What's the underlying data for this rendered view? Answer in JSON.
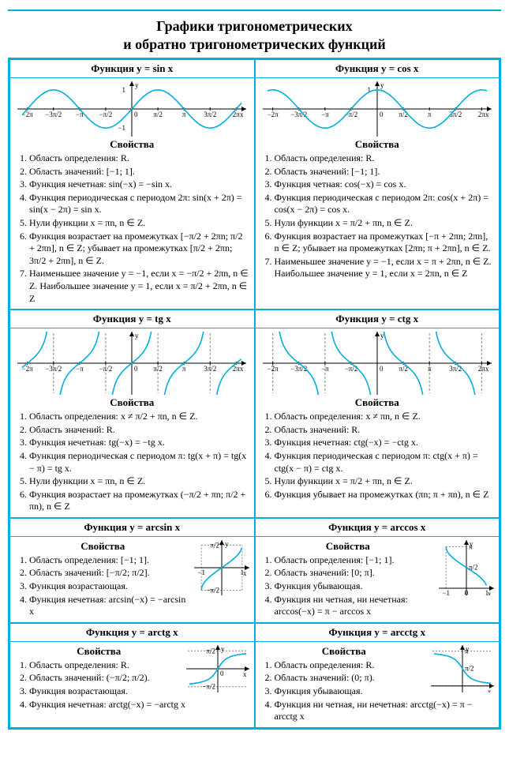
{
  "title1": "Графики тригонометрических",
  "title2": "и обратно тригонометрических функций",
  "colors": {
    "accent": "#00aee0",
    "curve": "#00aee0",
    "axis": "#000",
    "dash": "#888"
  },
  "sin": {
    "head": "Функция y = sin x",
    "sub": "Свойства",
    "graph": {
      "type": "sin",
      "xlim": [
        -6.6,
        6.6
      ],
      "ylim": [
        -1.2,
        1.2
      ],
      "xticks": [
        "−2π",
        "−3π/2",
        "−π",
        "−π/2",
        "0",
        "π/2",
        "π",
        "3π/2",
        "2π"
      ],
      "xtick_pos": [
        -6.283,
        -4.712,
        -3.1416,
        -1.5708,
        0,
        1.5708,
        3.1416,
        4.712,
        6.283
      ],
      "amp": 1,
      "period": 6.2832
    },
    "props": [
      "Область определения: R.",
      "Область значений: [−1; 1].",
      "Функция нечетная: sin(−x) = −sin x.",
      "Функция периодическая с периодом 2π: sin(x + 2π) = sin(x − 2π) = sin x.",
      "Нули функции x = πn,  n ∈ Z.",
      "Функция возрастает на промежутках [−π/2 + 2πn; π/2 + 2πn],  n ∈ Z; убывает на промежутках [π/2 + 2πn; 3π/2 + 2πn],  n ∈ Z.",
      "Наименьшее значение y = −1, если x = −π/2 + 2πn,  n ∈ Z. Наибольшее значение y = 1, если x = π/2 + 2πn,  n ∈ Z"
    ]
  },
  "cos": {
    "head": "Функция y = cos x",
    "sub": "Свойства",
    "graph": {
      "type": "cos",
      "xlim": [
        -6.6,
        6.6
      ],
      "ylim": [
        -1.2,
        1.2
      ],
      "xtick_pos": [
        -6.283,
        -4.712,
        -3.1416,
        -1.5708,
        0,
        1.5708,
        3.1416,
        4.712,
        6.283
      ],
      "xticks": [
        "−2π",
        "−3π/2",
        "−π",
        "−π/2",
        "0",
        "π/2",
        "π",
        "3π/2",
        "2π"
      ],
      "amp": 1,
      "period": 6.2832
    },
    "props": [
      "Область определения: R.",
      "Область значений: [−1; 1].",
      "Функция четная: cos(−x) = cos x.",
      "Функция периодическая с периодом 2π: cos(x + 2π) = cos(x − 2π) = cos x.",
      "Нули функции  x = π/2 + πn,  n ∈ Z.",
      "Функция возрастает на промежутках [−π + 2πn; 2πn],  n ∈ Z; убывает на промежутках [2πn; π + 2πn],  n ∈ Z.",
      "Наименьшее значение y = −1, если x = π + 2πn,  n ∈ Z. Наибольшее значение y = 1, если x = 2πn,  n ∈ Z"
    ]
  },
  "tan": {
    "head": "Функция y = tg x",
    "sub": "Свойства",
    "graph": {
      "type": "tan",
      "xlim": [
        -6.6,
        6.6
      ],
      "ylim": [
        -2,
        2
      ],
      "asymptotes": [
        -4.712,
        -1.5708,
        1.5708,
        4.712
      ],
      "xtick_pos": [
        -6.283,
        -4.712,
        -3.1416,
        -1.5708,
        0,
        1.5708,
        3.1416,
        4.712,
        6.283
      ],
      "xticks": [
        "−2π",
        "−3π/2",
        "−π",
        "−π/2",
        "0",
        "π/2",
        "π",
        "3π/2",
        "2π"
      ]
    },
    "props": [
      "Область определения:  x ≠ π/2 + πn,  n ∈ Z.",
      "Область значений: R.",
      "Функция нечетная: tg(−x) = −tg x.",
      "Функция периодическая с периодом π: tg(x + π) = tg(x − π) = tg x.",
      "Нули функции x = πn,  n ∈ Z.",
      "Функция возрастает на промежутках (−π/2 + πn; π/2 + πn),  n ∈ Z"
    ]
  },
  "cot": {
    "head": "Функция y = ctg x",
    "sub": "Свойства",
    "graph": {
      "type": "cot",
      "xlim": [
        -6.6,
        6.6
      ],
      "ylim": [
        -2,
        2
      ],
      "asymptotes": [
        -6.283,
        -3.1416,
        0,
        3.1416,
        6.283
      ],
      "xtick_pos": [
        -6.283,
        -4.712,
        -3.1416,
        -1.5708,
        0,
        1.5708,
        3.1416,
        4.712,
        6.283
      ],
      "xticks": [
        "−2π",
        "−3π/2",
        "−π",
        "−π/2",
        "0",
        "π/2",
        "π",
        "3π/2",
        "2π"
      ]
    },
    "props": [
      "Область определения: x ≠ πn,  n ∈ Z.",
      "Область значений: R.",
      "Функция нечетная: ctg(−x) = −ctg x.",
      "Функция периодическая с периодом π: ctg(x + π) = ctg(x − π) = ctg x.",
      "Нули функции  x = π/2 + πn,  n ∈ Z.",
      "Функция убывает на промежутках (πn; π + πn),  n ∈ Z"
    ]
  },
  "arcsin": {
    "head": "Функция y = arcsin x",
    "sub": "Свойства",
    "graph": {
      "w": 70,
      "h": 70,
      "xlim": [
        -1.2,
        1.2
      ],
      "ylim": [
        -1.7,
        1.7
      ],
      "ylabels": [
        [
          "π/2",
          1.5708
        ],
        [
          "−π/2",
          -1.5708
        ]
      ],
      "xlabels": [
        [
          "−1",
          -1
        ],
        [
          "1",
          1
        ]
      ]
    },
    "props": [
      "Область определения: [−1; 1].",
      "Область значений: [−π/2; π/2].",
      "Функция возрастающая.",
      "Функция нечетная: arcsin(−x) = −arcsin x"
    ]
  },
  "arccos": {
    "head": "Функция y = arccos x",
    "sub": "Свойства",
    "graph": {
      "w": 70,
      "h": 70,
      "xlim": [
        -1.2,
        1.2
      ],
      "ylim": [
        -0.3,
        3.4
      ],
      "ylabels": [
        [
          "π",
          3.1416
        ],
        [
          "π/2",
          1.5708
        ]
      ],
      "xlabels": [
        [
          "−1",
          -1
        ],
        [
          "0",
          0
        ],
        [
          "1",
          1
        ]
      ]
    },
    "props": [
      "Область определения: [−1; 1].",
      "Область значений: [0; π].",
      "Функция убывающая.",
      "Функция ни четная, ни нечетная: arccos(−x) = π − arccos x"
    ]
  },
  "arctan": {
    "head": "Функция y = arctg x",
    "sub": "Свойства",
    "graph": {
      "w": 80,
      "h": 60,
      "xlim": [
        -4,
        4
      ],
      "ylim": [
        -1.8,
        1.8
      ],
      "ylabels": [
        [
          "π/2",
          1.5708
        ],
        [
          "−π/2",
          -1.5708
        ]
      ],
      "asym": [
        1.5708,
        -1.5708
      ]
    },
    "props": [
      "Область определения: R.",
      "Область значений: (−π/2; π/2).",
      "Функция возрастающая.",
      "Функция нечетная: arctg(−x) = −arctg x"
    ]
  },
  "arccot": {
    "head": "Функция y = arcctg x",
    "sub": "Свойства",
    "graph": {
      "w": 80,
      "h": 60,
      "xlim": [
        -4,
        4
      ],
      "ylim": [
        -0.3,
        3.4
      ],
      "ylabels": [
        [
          "π",
          3.1416
        ],
        [
          "π/2",
          1.5708
        ]
      ],
      "asym": [
        3.1416,
        0
      ]
    },
    "props": [
      "Область определения: R.",
      "Область значений: (0; π).",
      "Функция убывающая.",
      "Функция ни четная, ни нечетная: arcctg(−x) = π − arcctg x"
    ]
  }
}
